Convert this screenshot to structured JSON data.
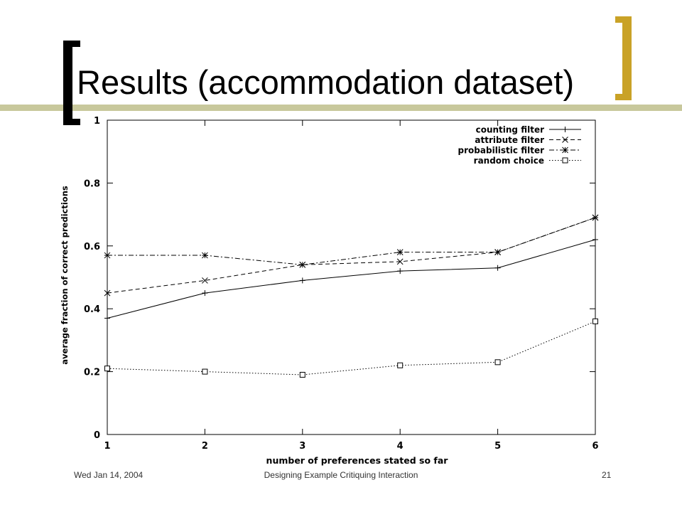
{
  "slide": {
    "title": "Results (accommodation dataset)",
    "footer_date": "Wed Jan 14, 2004",
    "footer_center": "Designing Example Critiquing Interaction",
    "page_number": "21"
  },
  "colors": {
    "accent_gold": "#c9a227",
    "accent_olive": "#c8c89c",
    "ink": "#000000"
  },
  "chart_data": {
    "type": "line",
    "xlabel": "number of preferences stated so far",
    "ylabel": "average fraction of correct predictions",
    "x": [
      1,
      2,
      3,
      4,
      5,
      6
    ],
    "xlim": [
      1,
      6
    ],
    "ylim": [
      0,
      1
    ],
    "xticks": [
      "1",
      "2",
      "3",
      "4",
      "5",
      "6"
    ],
    "yticks": [
      "0",
      "0.2",
      "0.4",
      "0.6",
      "0.8",
      "1"
    ],
    "legend_position": "top-right",
    "grid": false,
    "series": [
      {
        "name": "counting filter",
        "values": [
          0.37,
          0.45,
          0.49,
          0.52,
          0.53,
          0.62
        ],
        "marker": "plus",
        "dash": "solid"
      },
      {
        "name": "attribute filter",
        "values": [
          0.45,
          0.49,
          0.54,
          0.55,
          0.58,
          0.69
        ],
        "marker": "x",
        "dash": "dashed"
      },
      {
        "name": "probabilistic filter",
        "values": [
          0.57,
          0.57,
          0.54,
          0.58,
          0.58,
          0.69
        ],
        "marker": "star",
        "dash": "dashdot"
      },
      {
        "name": "random choice",
        "values": [
          0.21,
          0.2,
          0.19,
          0.22,
          0.23,
          0.36
        ],
        "marker": "square",
        "dash": "dotted"
      }
    ]
  }
}
